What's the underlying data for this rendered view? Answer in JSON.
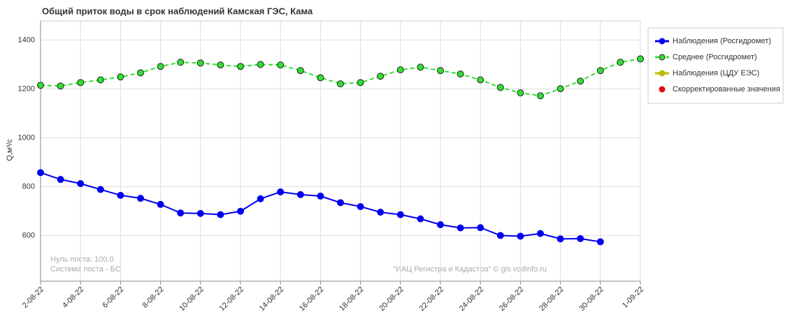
{
  "chart_data": {
    "type": "line",
    "title": "Общий приток воды в срок наблюдений Камская ГЭС,  Кама",
    "ylabel": "Q,м³/с",
    "annotations": [
      "Нуль поста: 100.0",
      "Система поста - БС",
      "\"ИАЦ Регистра и Кадастра\" © gis.vodinfo.ru"
    ],
    "x": [
      "2022-08-02",
      "2022-08-03",
      "2022-08-04",
      "2022-08-05",
      "2022-08-06",
      "2022-08-07",
      "2022-08-08",
      "2022-08-09",
      "2022-08-10",
      "2022-08-11",
      "2022-08-12",
      "2022-08-13",
      "2022-08-14",
      "2022-08-15",
      "2022-08-16",
      "2022-08-17",
      "2022-08-18",
      "2022-08-19",
      "2022-08-20",
      "2022-08-21",
      "2022-08-22",
      "2022-08-23",
      "2022-08-24",
      "2022-08-25",
      "2022-08-26",
      "2022-08-27",
      "2022-08-28",
      "2022-08-29",
      "2022-08-30",
      "2022-08-31",
      "2022-09-01"
    ],
    "series": [
      {
        "name": "Наблюдения (Росгидромет)",
        "color": "#0000ee",
        "dashed": false,
        "line": true,
        "values": [
          858,
          830,
          813,
          789,
          765,
          753,
          728,
          693,
          691,
          686,
          700,
          751,
          779,
          768,
          762,
          735,
          719,
          696,
          686,
          669,
          645,
          632,
          633,
          601,
          598,
          609,
          587,
          588,
          575,
          null,
          null
        ]
      },
      {
        "name": "Среднее (Росгидромет)",
        "color": "#33dd33",
        "dashed": true,
        "line": true,
        "values": [
          1215,
          1212,
          1226,
          1237,
          1249,
          1266,
          1292,
          1309,
          1306,
          1298,
          1292,
          1300,
          1298,
          1275,
          1246,
          1221,
          1226,
          1252,
          1278,
          1289,
          1275,
          1261,
          1237,
          1206,
          1184,
          1172,
          1201,
          1232,
          1275,
          1309,
          1323
        ]
      },
      {
        "name": "Наблюдения (ЦДУ ЕЭС)",
        "color": "#bbbb00",
        "dashed": false,
        "line": true,
        "values": [
          null,
          null,
          null,
          null,
          null,
          null,
          null,
          null,
          null,
          null,
          null,
          null,
          null,
          null,
          null,
          null,
          null,
          null,
          null,
          null,
          null,
          null,
          null,
          null,
          null,
          null,
          null,
          null,
          null,
          null,
          null
        ]
      },
      {
        "name": "Скорректированные значения",
        "color": "#dd1111",
        "dashed": false,
        "line": false,
        "values": [
          null,
          null,
          null,
          null,
          null,
          null,
          null,
          null,
          null,
          null,
          null,
          null,
          null,
          null,
          null,
          null,
          null,
          null,
          null,
          null,
          null,
          null,
          null,
          null,
          null,
          null,
          null,
          null,
          null,
          null,
          null
        ]
      }
    ],
    "xlim": [
      "2022-08-02",
      "2022-09-01"
    ],
    "xticks": [
      {
        "value": "2022-08-02",
        "label": "2-08-22"
      },
      {
        "value": "2022-08-04",
        "label": "4-08-22"
      },
      {
        "value": "2022-08-06",
        "label": "6-08-22"
      },
      {
        "value": "2022-08-08",
        "label": "8-08-22"
      },
      {
        "value": "2022-08-10",
        "label": "10-08-22"
      },
      {
        "value": "2022-08-12",
        "label": "12-08-22"
      },
      {
        "value": "2022-08-14",
        "label": "14-08-22"
      },
      {
        "value": "2022-08-16",
        "label": "16-08-22"
      },
      {
        "value": "2022-08-18",
        "label": "18-08-22"
      },
      {
        "value": "2022-08-20",
        "label": "20-08-22"
      },
      {
        "value": "2022-08-22",
        "label": "22-08-22"
      },
      {
        "value": "2022-08-24",
        "label": "24-08-22"
      },
      {
        "value": "2022-08-26",
        "label": "26-08-22"
      },
      {
        "value": "2022-08-28",
        "label": "28-08-22"
      },
      {
        "value": "2022-08-30",
        "label": "30-08-22"
      },
      {
        "value": "2022-09-01",
        "label": "1-09-22"
      }
    ],
    "ylim": [
      414,
      1478
    ],
    "yticks": [
      600,
      800,
      1000,
      1200,
      1400
    ],
    "grid": true,
    "legend": "right"
  }
}
